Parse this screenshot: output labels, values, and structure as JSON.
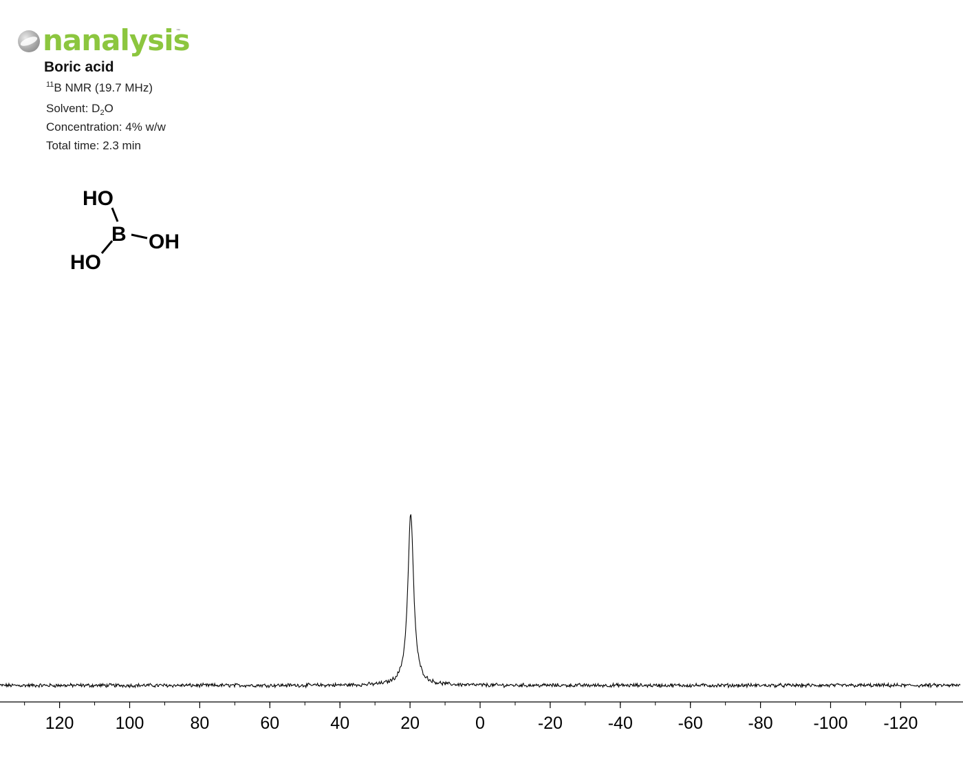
{
  "logo": {
    "text": "nanalysis",
    "trademark": "™",
    "brand_color": "#8cc63f"
  },
  "compound": {
    "name": "Boric acid"
  },
  "meta": {
    "nucleus_mass": "11",
    "nucleus_line": "B NMR (19.7 MHz)",
    "solvent_prefix": "Solvent: D",
    "solvent_sub": "2",
    "solvent_suffix": "O",
    "concentration": "Concentration: 4% w/w",
    "total_time": "Total time: 2.3 min"
  },
  "structure": {
    "center_atom": "B",
    "substituent_top": "HO",
    "substituent_right": "OH",
    "substituent_bottom": "HO"
  },
  "chart_data": {
    "type": "line",
    "title": "",
    "xlabel": "",
    "ylabel": "",
    "x_reversed": true,
    "xlim": [
      137,
      -137
    ],
    "ylim": [
      0,
      1.0
    ],
    "xticks": [
      120,
      100,
      80,
      60,
      40,
      20,
      0,
      -20,
      -40,
      -60,
      -80,
      -100,
      -120
    ],
    "xtick_labels": [
      "120",
      "100",
      "80",
      "60",
      "40",
      "20",
      "0",
      "-20",
      "-40",
      "-60",
      "-80",
      "-100",
      "-120"
    ],
    "minor_tick_step": 10,
    "grid": false,
    "line_color": "#000000",
    "series": [
      {
        "peaks": [
          {
            "x": 19.8,
            "height": 1.0,
            "fwhm": 2.0
          }
        ],
        "x": [
          137,
          120,
          100,
          80,
          60,
          40,
          30,
          26,
          24,
          22,
          21,
          20.5,
          19.8,
          19.0,
          18.5,
          17.5,
          16,
          14,
          12,
          8,
          0,
          -20,
          -40,
          -60,
          -80,
          -100,
          -120,
          -137
        ],
        "y": [
          0.0,
          0.0,
          0.0,
          0.0,
          0.0,
          0.0,
          0.02,
          0.05,
          0.1,
          0.3,
          0.55,
          0.8,
          1.0,
          0.8,
          0.55,
          0.3,
          0.1,
          0.04,
          0.01,
          0.0,
          0.0,
          0.0,
          0.0,
          0.0,
          0.0,
          0.0,
          0.0,
          0.0
        ]
      }
    ]
  }
}
